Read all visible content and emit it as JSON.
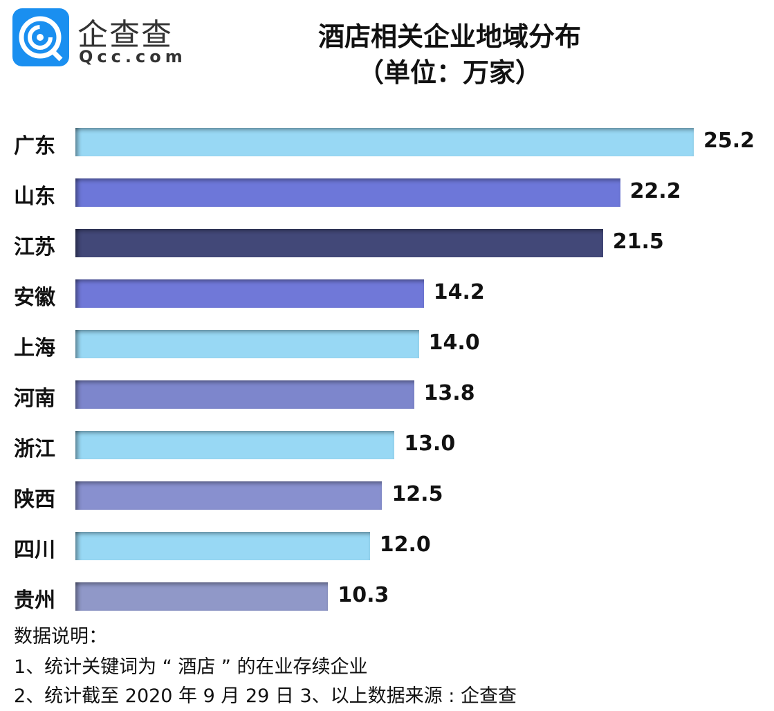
{
  "logo": {
    "cn": "企查查",
    "en": "Qcc.com"
  },
  "chart_data": {
    "type": "bar",
    "orientation": "horizontal",
    "title": "酒店相关企业地域分布",
    "subtitle": "（单位：万家）",
    "categories": [
      "广东",
      "山东",
      "江苏",
      "安徽",
      "上海",
      "河南",
      "浙江",
      "陕西",
      "四川",
      "贵州"
    ],
    "values": [
      25.2,
      22.2,
      21.5,
      14.2,
      14.0,
      13.8,
      13.0,
      12.5,
      12.0,
      10.3
    ],
    "value_labels": [
      "25.2",
      "22.2",
      "21.5",
      "14.2",
      "14.0",
      "13.8",
      "13.0",
      "12.5",
      "12.0",
      "10.3"
    ],
    "colors": [
      "#98d8f4",
      "#6d77d9",
      "#424878",
      "#7078d8",
      "#98d8f4",
      "#7d86cc",
      "#98d8f4",
      "#8890cf",
      "#98d8f4",
      "#9098c8"
    ],
    "grid": false
  },
  "notes": [
    "数据说明：",
    "1、统计关键词为 “ 酒店 ” 的在业存续企业",
    "2、统计截至 2020 年 9 月 29 日  3、以上数据来源 : 企查查"
  ]
}
